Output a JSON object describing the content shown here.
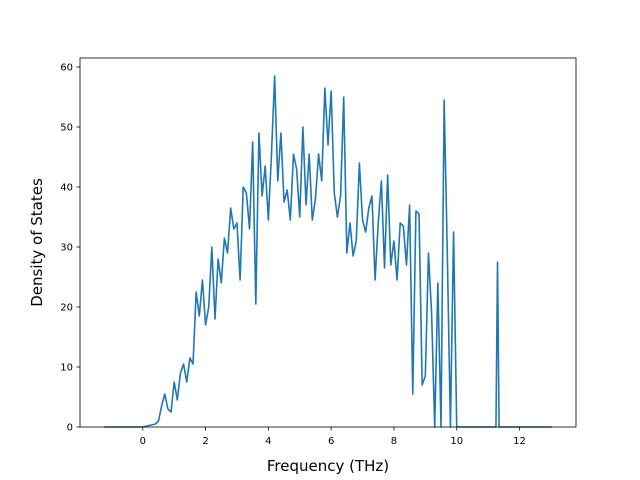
{
  "chart_data": {
    "type": "line",
    "xlabel": "Frequency (THz)",
    "ylabel": "Density of States",
    "xlim": [
      -2.0,
      13.8
    ],
    "ylim": [
      0,
      61.5
    ],
    "xticks": [
      0,
      2,
      4,
      6,
      8,
      10,
      12
    ],
    "yticks": [
      0,
      10,
      20,
      30,
      40,
      50,
      60
    ],
    "grid": false,
    "legend": "none",
    "line_color": "#1f77b4",
    "series": [
      {
        "x": [
          -1.2,
          0.0,
          0.4,
          0.5,
          0.6,
          0.7,
          0.8,
          0.9,
          1.0,
          1.1,
          1.2,
          1.3,
          1.4,
          1.5,
          1.6,
          1.7,
          1.8,
          1.9,
          2.0,
          2.1,
          2.2,
          2.3,
          2.4,
          2.5,
          2.6,
          2.7,
          2.8,
          2.9,
          3.0,
          3.1,
          3.2,
          3.3,
          3.4,
          3.5,
          3.6,
          3.7,
          3.8,
          3.9,
          4.0,
          4.1,
          4.2,
          4.3,
          4.4,
          4.5,
          4.6,
          4.7,
          4.8,
          4.9,
          5.0,
          5.1,
          5.2,
          5.3,
          5.4,
          5.5,
          5.6,
          5.7,
          5.8,
          5.9,
          6.0,
          6.1,
          6.2,
          6.3,
          6.4,
          6.5,
          6.6,
          6.7,
          6.8,
          6.9,
          7.0,
          7.1,
          7.2,
          7.3,
          7.4,
          7.5,
          7.6,
          7.7,
          7.8,
          7.9,
          8.0,
          8.1,
          8.2,
          8.3,
          8.4,
          8.5,
          8.6,
          8.7,
          8.8,
          8.9,
          9.0,
          9.1,
          9.2,
          9.3,
          9.4,
          9.5,
          9.6,
          9.7,
          9.8,
          9.9,
          10.0,
          10.1,
          10.2,
          10.3,
          10.4,
          10.5,
          10.6,
          10.7,
          10.8,
          10.9,
          11.0,
          11.1,
          11.2,
          11.25,
          11.3,
          11.35,
          11.4,
          11.5,
          12.0,
          13.0
        ],
        "y": [
          0,
          0,
          0.5,
          1.0,
          3.5,
          5.5,
          3.0,
          2.5,
          7.5,
          4.5,
          9.0,
          10.5,
          7.5,
          11.5,
          10.5,
          22.5,
          18.5,
          24.5,
          17.0,
          20.0,
          30.0,
          18.0,
          28.0,
          24.0,
          31.5,
          29.0,
          36.5,
          33.0,
          34.0,
          24.5,
          40.0,
          39.0,
          33.0,
          47.5,
          20.5,
          49.0,
          38.5,
          43.5,
          34.5,
          45.5,
          58.5,
          41.0,
          49.0,
          37.5,
          39.5,
          34.5,
          45.5,
          43.0,
          35.0,
          50.0,
          37.0,
          45.5,
          34.5,
          38.0,
          45.5,
          41.0,
          56.5,
          47.0,
          56.0,
          39.0,
          35.0,
          38.5,
          55.0,
          29.0,
          34.0,
          28.5,
          31.0,
          44.0,
          34.5,
          32.5,
          36.5,
          38.5,
          24.5,
          34.0,
          41.0,
          26.5,
          42.0,
          27.0,
          31.0,
          24.5,
          34.0,
          33.5,
          27.0,
          37.0,
          5.5,
          36.0,
          35.5,
          7.0,
          8.5,
          29.0,
          19.0,
          0,
          24.0,
          0,
          54.5,
          29.0,
          0,
          32.5,
          0,
          0,
          0,
          0,
          0,
          0,
          0,
          0,
          0,
          0,
          0,
          0,
          0,
          0,
          27.5,
          0,
          0,
          0,
          0,
          0
        ]
      }
    ]
  }
}
